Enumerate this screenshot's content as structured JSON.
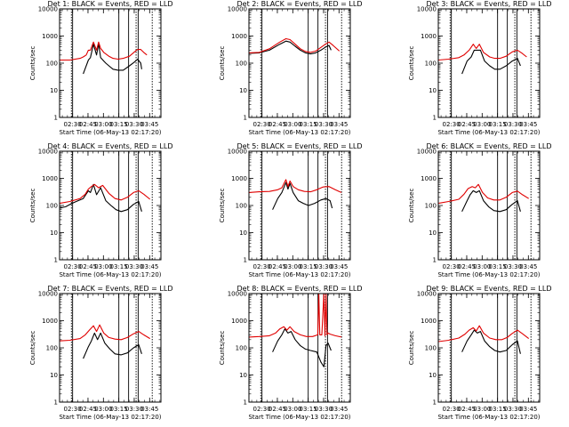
{
  "chart_data": {
    "type": "line",
    "y_axis": {
      "label": "Counts/sec",
      "scale": "log",
      "ylim": [
        1,
        10000
      ],
      "tick_labels": [
        "1",
        "10",
        "100",
        "1000",
        "10000"
      ]
    },
    "x_axis": {
      "label": "Start Time (06-May-13 02:17:20)",
      "tick_labels": [
        "02:30",
        "02:45",
        "03:00",
        "03:15",
        "03:30",
        "03:45"
      ],
      "xlim": [
        "02:17:20",
        "03:56:00"
      ]
    },
    "legend_colors": {
      "Events": "#000000",
      "LLD": "#e00000"
    },
    "panels": [
      {
        "title": "Det 1: BLACK = Events, RED = LLD",
        "series": [
          {
            "name": "Events",
            "color": "#000000",
            "t_min": [
              23,
              28,
              30,
              33,
              36,
              38,
              40,
              43,
              45,
              48,
              52,
              57,
              62,
              68,
              73,
              76,
              79,
              80
            ],
            "values": [
              40,
              130,
              160,
              500,
              200,
              520,
              160,
              120,
              100,
              80,
              60,
              55,
              55,
              80,
              110,
              140,
              100,
              60
            ]
          },
          {
            "name": "LLD",
            "color": "#e00000",
            "t_min": [
              0,
              10,
              20,
              23,
              26,
              28,
              30,
              33,
              36,
              38,
              40,
              43,
              48,
              52,
              57,
              62,
              68,
              73,
              76,
              79,
              82,
              85
            ],
            "values": [
              130,
              130,
              150,
              170,
              200,
              300,
              300,
              600,
              300,
              600,
              350,
              250,
              180,
              150,
              140,
              150,
              180,
              260,
              320,
              320,
              250,
              200
            ]
          }
        ],
        "vlines_solid": [
          12.7,
          57.7,
          67.2,
          76.5
        ],
        "vlines_dotted": [
          11.5,
          74.5,
          90.2
        ]
      },
      {
        "title": "Det 2: BLACK = Events, RED = LLD",
        "series": [
          {
            "name": "Events",
            "color": "#000000",
            "t_min": [
              0,
              10,
              20,
              30,
              36,
              40,
              45,
              50,
              55,
              60,
              65,
              70,
              75,
              78,
              80
            ],
            "values": [
              230,
              240,
              300,
              500,
              650,
              600,
              420,
              300,
              240,
              220,
              240,
              300,
              400,
              450,
              300
            ]
          },
          {
            "name": "LLD",
            "color": "#e00000",
            "t_min": [
              0,
              10,
              20,
              30,
              36,
              40,
              45,
              50,
              55,
              60,
              65,
              70,
              75,
              78,
              82,
              88
            ],
            "values": [
              240,
              250,
              340,
              600,
              800,
              740,
              500,
              340,
              270,
              250,
              280,
              380,
              520,
              600,
              450,
              280
            ]
          }
        ],
        "vlines_solid": [
          12.7,
          57.7,
          67.2,
          76.5
        ],
        "vlines_dotted": [
          11.5,
          74.5,
          90.2
        ]
      },
      {
        "title": "Det 3: BLACK = Events, RED = LLD",
        "series": [
          {
            "name": "Events",
            "color": "#000000",
            "t_min": [
              23,
              28,
              32,
              35,
              38,
              41,
              45,
              50,
              55,
              60,
              66,
              72,
              77,
              80
            ],
            "values": [
              40,
              120,
              170,
              300,
              300,
              300,
              120,
              80,
              60,
              60,
              80,
              120,
              150,
              80
            ]
          },
          {
            "name": "LLD",
            "color": "#e00000",
            "t_min": [
              0,
              10,
              20,
              25,
              30,
              34,
              37,
              40,
              44,
              50,
              55,
              60,
              66,
              72,
              77,
              81,
              86
            ],
            "values": [
              130,
              140,
              160,
              200,
              300,
              500,
              350,
              500,
              250,
              170,
              150,
              150,
              180,
              260,
              300,
              240,
              170
            ]
          }
        ],
        "vlines_solid": [
          12.7,
          57.7,
          67.2,
          76.5
        ],
        "vlines_dotted": [
          11.5,
          74.5,
          90.2
        ]
      },
      {
        "title": "Det 4: BLACK = Events, RED = LLD",
        "series": [
          {
            "name": "Events",
            "color": "#000000",
            "t_min": [
              0,
              6,
              12,
              18,
              23,
              28,
              30,
              33,
              36,
              40,
              45,
              50,
              55,
              60,
              66,
              72,
              77,
              80
            ],
            "values": [
              80,
              90,
              120,
              150,
              180,
              350,
              300,
              600,
              250,
              450,
              150,
              100,
              70,
              60,
              70,
              110,
              140,
              60
            ]
          },
          {
            "name": "LLD",
            "color": "#e00000",
            "t_min": [
              0,
              10,
              20,
              25,
              28,
              31,
              34,
              38,
              42,
              48,
              54,
              60,
              66,
              72,
              77,
              82,
              88
            ],
            "values": [
              120,
              140,
              180,
              260,
              400,
              500,
              600,
              450,
              550,
              280,
              180,
              160,
              200,
              300,
              350,
              260,
              170
            ]
          }
        ],
        "vlines_solid": [
          12.7,
          57.7,
          67.2,
          76.5
        ],
        "vlines_dotted": [
          11.5,
          74.5,
          90.2
        ]
      },
      {
        "title": "Det 5: BLACK = Events, RED = LLD",
        "series": [
          {
            "name": "Events",
            "color": "#000000",
            "t_min": [
              23,
              28,
              32,
              36,
              38,
              40,
              43,
              48,
              53,
              58,
              64,
              70,
              75,
              79,
              81
            ],
            "values": [
              70,
              180,
              300,
              700,
              400,
              650,
              300,
              150,
              120,
              100,
              120,
              160,
              180,
              150,
              80
            ]
          },
          {
            "name": "LLD",
            "color": "#e00000",
            "t_min": [
              0,
              10,
              20,
              28,
              32,
              36,
              38,
              40,
              43,
              48,
              54,
              60,
              66,
              72,
              78,
              84,
              90
            ],
            "values": [
              300,
              320,
              330,
              380,
              450,
              900,
              500,
              800,
              500,
              380,
              330,
              320,
              380,
              480,
              500,
              380,
              300
            ]
          }
        ],
        "vlines_solid": [
          12.7,
          57.7,
          67.2,
          76.5
        ],
        "vlines_dotted": [
          11.5,
          74.5,
          90.2
        ]
      },
      {
        "title": "Det 6: BLACK = Events, RED = LLD",
        "series": [
          {
            "name": "Events",
            "color": "#000000",
            "t_min": [
              23,
              28,
              31,
              34,
              37,
              40,
              44,
              49,
              54,
              60,
              66,
              72,
              77,
              80
            ],
            "values": [
              60,
              150,
              250,
              350,
              300,
              350,
              150,
              90,
              65,
              60,
              70,
              110,
              150,
              60
            ]
          },
          {
            "name": "LLD",
            "color": "#e00000",
            "t_min": [
              0,
              10,
              20,
              25,
              29,
              33,
              36,
              39,
              43,
              48,
              54,
              60,
              66,
              72,
              77,
              82,
              88
            ],
            "values": [
              120,
              140,
              170,
              260,
              420,
              500,
              450,
              600,
              300,
              190,
              160,
              160,
              200,
              300,
              340,
              250,
              180
            ]
          }
        ],
        "vlines_solid": [
          12.7,
          57.7,
          67.2,
          76.5
        ],
        "vlines_dotted": [
          11.5,
          74.5,
          90.2
        ]
      },
      {
        "title": "Det 7: BLACK = Events, RED = LLD",
        "series": [
          {
            "name": "Events",
            "color": "#000000",
            "t_min": [
              23,
              28,
              31,
              34,
              37,
              40,
              44,
              49,
              54,
              60,
              66,
              72,
              77,
              80
            ],
            "values": [
              40,
              110,
              180,
              350,
              200,
              350,
              150,
              90,
              60,
              55,
              65,
              100,
              130,
              60
            ]
          },
          {
            "name": "LLD",
            "color": "#e00000",
            "t_min": [
              0,
              10,
              20,
              25,
              29,
              33,
              36,
              39,
              43,
              48,
              54,
              60,
              66,
              72,
              77,
              82,
              88
            ],
            "values": [
              180,
              190,
              220,
              300,
              450,
              650,
              400,
              700,
              350,
              240,
              210,
              200,
              240,
              330,
              400,
              300,
              220
            ]
          }
        ],
        "vlines_solid": [
          12.7,
          57.7,
          67.2,
          76.5
        ],
        "vlines_dotted": [
          11.5,
          74.5,
          90.2
        ]
      },
      {
        "title": "Det 8: BLACK = Events, RED = LLD",
        "series": [
          {
            "name": "Events",
            "color": "#000000",
            "t_min": [
              23,
              28,
              32,
              35,
              38,
              41,
              45,
              50,
              55,
              60,
              66,
              70,
              73,
              75,
              77,
              80
            ],
            "values": [
              70,
              180,
              300,
              500,
              350,
              400,
              200,
              120,
              90,
              80,
              70,
              30,
              20,
              120,
              150,
              80
            ]
          },
          {
            "name": "LLD",
            "color": "#e00000",
            "t_min": [
              0,
              10,
              20,
              26,
              30,
              34,
              37,
              40,
              44,
              50,
              56,
              62,
              67,
              68,
              69,
              71,
              73,
              74,
              75,
              76,
              77,
              79,
              84,
              90
            ],
            "values": [
              250,
              260,
              280,
              350,
              500,
              600,
              450,
              600,
              400,
              300,
              260,
              260,
              300,
              10000,
              300,
              300,
              10000,
              280,
              10000,
              300,
              350,
              320,
              280,
              250
            ]
          }
        ],
        "vlines_solid": [
          12.7,
          57.7,
          67.2,
          76.5
        ],
        "vlines_dotted": [
          11.5,
          74.5,
          90.2
        ]
      },
      {
        "title": "Det 9: BLACK = Events, RED = LLD",
        "series": [
          {
            "name": "Events",
            "color": "#000000",
            "t_min": [
              23,
              28,
              32,
              35,
              38,
              41,
              45,
              50,
              55,
              60,
              66,
              72,
              77,
              80
            ],
            "values": [
              70,
              180,
              300,
              450,
              350,
              400,
              180,
              110,
              80,
              70,
              80,
              130,
              180,
              60
            ]
          },
          {
            "name": "LLD",
            "color": "#e00000",
            "t_min": [
              0,
              10,
              20,
              26,
              30,
              34,
              37,
              40,
              44,
              50,
              56,
              62,
              67,
              72,
              77,
              82,
              88
            ],
            "values": [
              170,
              190,
              230,
              320,
              450,
              550,
              420,
              650,
              350,
              230,
              200,
              200,
              240,
              340,
              450,
              330,
              220
            ]
          }
        ],
        "vlines_solid": [
          12.7,
          57.7,
          67.2,
          76.5
        ],
        "vlines_dotted": [
          11.5,
          74.5,
          90.2
        ]
      }
    ]
  }
}
